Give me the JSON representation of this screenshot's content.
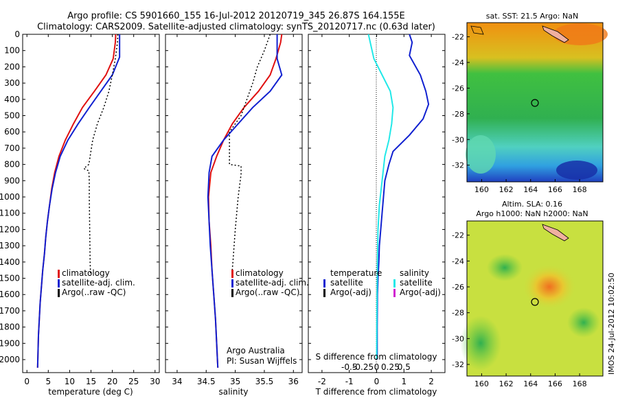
{
  "header": {
    "line1": "Argo profile: CS 5901660_155 16-Jul-2012 20120719_345 26.87S 164.155E",
    "line2": "Climatology: CARS2009. Satellite-adjusted climatology: synTS_20120717.nc (0.63d later)"
  },
  "credits": {
    "line1": "Argo Australia",
    "line2": "PI: Susan Wijffels"
  },
  "stamp": "IMOS 24-Jul-2012 10:02:50",
  "colors": {
    "red": "#e01010",
    "blue": "#1020d0",
    "cyan": "#20e8e8",
    "magenta": "#d020d0",
    "black": "#000000"
  },
  "chart_data": [
    {
      "type": "line",
      "xlabel": "temperature (deg C)",
      "ylabel": "",
      "xlim": [
        -1,
        31
      ],
      "ylim": [
        2080,
        0
      ],
      "xticks": [
        0,
        5,
        10,
        15,
        20,
        25,
        30
      ],
      "yticks": [
        0,
        100,
        200,
        300,
        400,
        500,
        600,
        700,
        800,
        900,
        1000,
        1100,
        1200,
        1300,
        1400,
        1500,
        1600,
        1700,
        1800,
        1900,
        2000
      ],
      "legend": [
        "climatology",
        "satellite-adj. clim.",
        "Argo(..raw -QC)"
      ],
      "series": [
        {
          "name": "climatology",
          "color": "red",
          "x": [
            20.8,
            20.7,
            20.2,
            18.5,
            15.8,
            13.0,
            10.9,
            9.0,
            7.5,
            6.5,
            5.8,
            5.3,
            4.8,
            4.4,
            4.1,
            3.7,
            3.4,
            3.1,
            2.9,
            2.7,
            2.6,
            2.5
          ],
          "y": [
            0,
            50,
            150,
            250,
            350,
            450,
            550,
            650,
            750,
            850,
            950,
            1050,
            1150,
            1250,
            1350,
            1450,
            1550,
            1650,
            1750,
            1850,
            1950,
            2050
          ]
        },
        {
          "name": "satellite-adj. clim.",
          "color": "blue",
          "x": [
            21.7,
            21.7,
            21.7,
            20.0,
            17.3,
            14.6,
            12.0,
            9.6,
            7.8,
            6.7,
            5.9,
            5.3,
            4.8,
            4.4,
            4.1,
            3.7,
            3.4,
            3.1,
            2.9,
            2.7,
            2.6,
            2.5
          ],
          "y": [
            0,
            50,
            140,
            250,
            350,
            450,
            550,
            650,
            750,
            850,
            950,
            1050,
            1150,
            1250,
            1350,
            1450,
            1550,
            1650,
            1750,
            1850,
            1950,
            2050
          ]
        },
        {
          "name": "Argo(..raw -QC)",
          "color": "black",
          "x": [
            21.3,
            21.2,
            20.7,
            20.0,
            19.2,
            18.0,
            16.5,
            15.4,
            14.8,
            14.5,
            13.3,
            14.5,
            14.6,
            14.6,
            14.7,
            14.8,
            14.9
          ],
          "y": [
            0,
            50,
            150,
            250,
            350,
            450,
            550,
            650,
            750,
            800,
            825,
            840,
            900,
            1000,
            1200,
            1400,
            1480
          ]
        }
      ]
    },
    {
      "type": "line",
      "xlabel": "salinity",
      "ylabel": "",
      "xlim": [
        33.8,
        36.15
      ],
      "ylim": [
        2080,
        0
      ],
      "xticks": [
        34,
        34.5,
        35,
        35.5,
        36
      ],
      "legend": [
        "climatology",
        "satellite-adj. clim.",
        "Argo(..raw -QC)"
      ],
      "series": [
        {
          "name": "climatology",
          "color": "red",
          "x": [
            35.8,
            35.78,
            35.7,
            35.6,
            35.4,
            35.15,
            34.95,
            34.8,
            34.68,
            34.58,
            34.54,
            34.55,
            34.58,
            34.6,
            34.63,
            34.66,
            34.68,
            34.7
          ],
          "y": [
            0,
            50,
            150,
            250,
            350,
            450,
            550,
            650,
            750,
            850,
            1000,
            1150,
            1300,
            1450,
            1600,
            1750,
            1900,
            2050
          ]
        },
        {
          "name": "satellite-adj. clim.",
          "color": "blue",
          "x": [
            35.72,
            35.72,
            35.72,
            35.8,
            35.6,
            35.3,
            35.05,
            34.8,
            34.6,
            34.55,
            34.53,
            34.55,
            34.57,
            34.6,
            34.63,
            34.66,
            34.68,
            34.7
          ],
          "y": [
            0,
            50,
            150,
            250,
            350,
            450,
            550,
            650,
            750,
            850,
            1000,
            1150,
            1300,
            1450,
            1600,
            1750,
            1900,
            2050
          ]
        },
        {
          "name": "Argo(..raw -QC)",
          "color": "black",
          "x": [
            35.6,
            35.5,
            35.38,
            35.3,
            35.2,
            35.1,
            34.9,
            34.9,
            35.1,
            35.1,
            35.05,
            35.0,
            34.98,
            34.96,
            34.94
          ],
          "y": [
            0,
            100,
            200,
            300,
            400,
            500,
            600,
            800,
            810,
            860,
            1000,
            1200,
            1300,
            1400,
            1480
          ]
        }
      ]
    },
    {
      "type": "line",
      "xlabel": "T difference from climatology",
      "title2": "S difference from climatology",
      "xlim": [
        -2.5,
        2.5
      ],
      "ylim": [
        2080,
        0
      ],
      "xticks": [
        -2,
        -1,
        0,
        1,
        2
      ],
      "xticks_top": [
        -0.5,
        -0.25,
        0,
        0.25,
        0.5
      ],
      "legend": {
        "temperature": "temperature",
        "salinity": "salinity",
        "t_sat": "satellite",
        "t_argo": "Argo(-adj)",
        "s_sat": "satellite",
        "s_argo": "Argo(-adj)"
      },
      "series": [
        {
          "name": "satellite",
          "group": "temperature",
          "color": "blue",
          "x": [
            1.2,
            1.3,
            1.2,
            1.6,
            1.8,
            1.9,
            1.7,
            1.2,
            0.6,
            0.45,
            0.3,
            0.25,
            0.2,
            0.15,
            0.1,
            0.08,
            0.05,
            0.03,
            0.02,
            0.02
          ],
          "y": [
            0,
            50,
            130,
            250,
            350,
            430,
            520,
            620,
            720,
            800,
            900,
            1000,
            1100,
            1200,
            1300,
            1400,
            1500,
            1600,
            1800,
            2000
          ]
        },
        {
          "name": "satellite",
          "group": "salinity",
          "color": "cyan",
          "x": [
            -0.3,
            -0.1,
            0.2,
            0.5,
            0.6,
            0.55,
            0.45,
            0.3,
            0.2,
            0.1,
            0.05,
            0.03,
            0.01,
            0.0
          ],
          "y": [
            0,
            150,
            250,
            350,
            450,
            550,
            650,
            750,
            900,
            1050,
            1200,
            1400,
            1700,
            2000
          ]
        }
      ]
    }
  ],
  "maps": [
    {
      "title": "sat. SST: 21.5  Argo: NaN",
      "xticks": [
        160,
        162,
        164,
        166,
        168
      ],
      "yticks": [
        -22,
        -24,
        -26,
        -28,
        -30,
        -32
      ],
      "marker": {
        "lon": 164.155,
        "lat": -26.87
      }
    },
    {
      "title": "Altim. SLA: 0.16",
      "title2": "Argo h1000: NaN h2000: NaN",
      "xticks": [
        160,
        162,
        164,
        166,
        168
      ],
      "yticks": [
        -22,
        -24,
        -26,
        -28,
        -30,
        -32
      ],
      "marker": {
        "lon": 164.155,
        "lat": -26.87
      }
    }
  ]
}
